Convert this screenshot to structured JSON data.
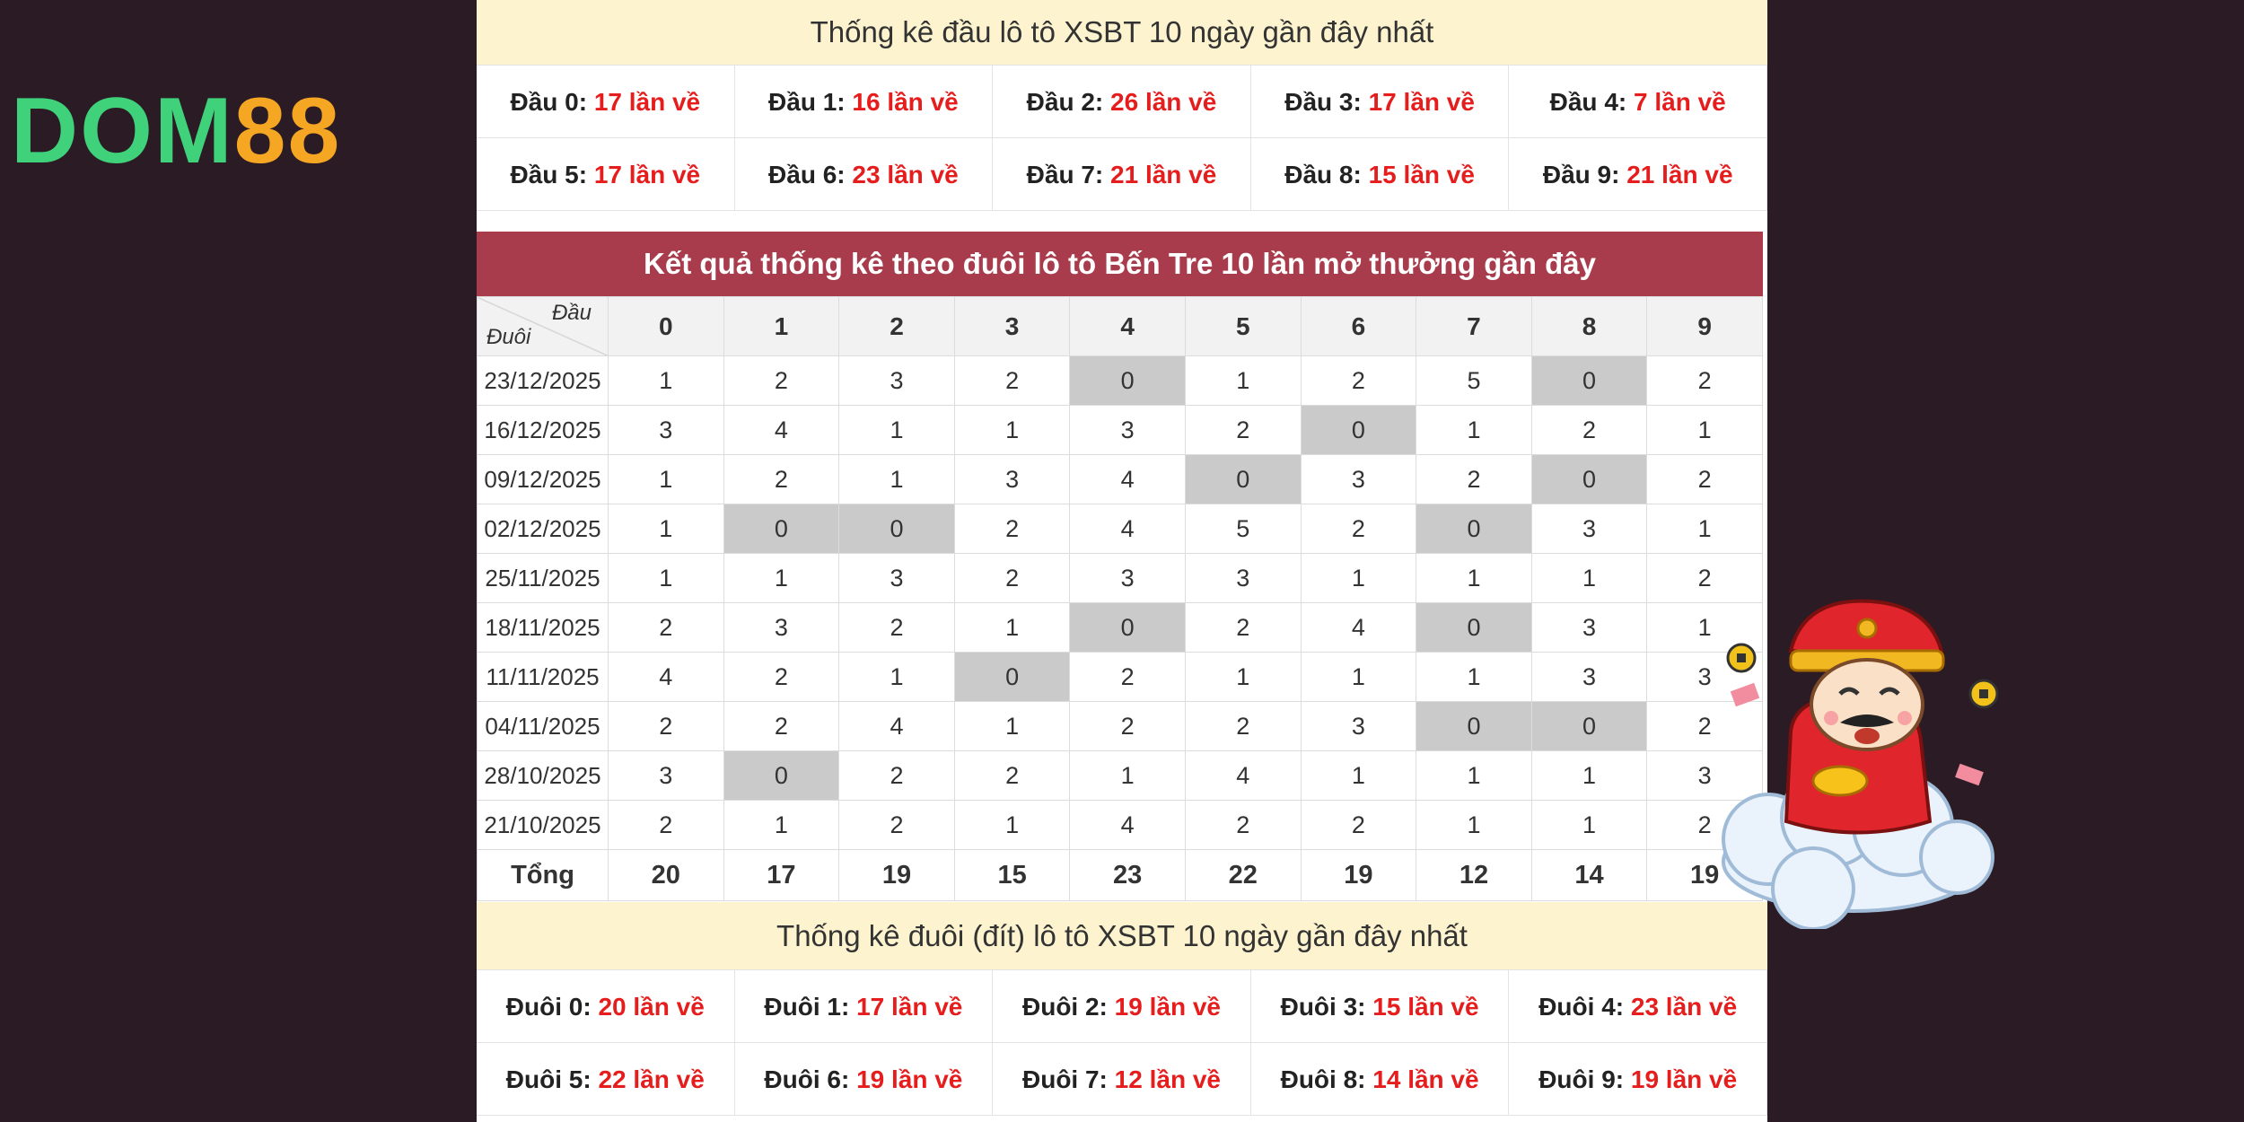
{
  "logo": {
    "part1": "DOM",
    "part2": "88"
  },
  "head_stats": {
    "title": "Thống kê đầu lô tô XSBT 10 ngày gần đây nhất",
    "items": [
      {
        "label": "Đầu 0:",
        "value": "17 lần về"
      },
      {
        "label": "Đầu 1:",
        "value": "16 lần về"
      },
      {
        "label": "Đầu 2:",
        "value": "26 lần về"
      },
      {
        "label": "Đầu 3:",
        "value": "17 lần về"
      },
      {
        "label": "Đầu 4:",
        "value": "7 lần về"
      },
      {
        "label": "Đầu 5:",
        "value": "17 lần về"
      },
      {
        "label": "Đầu 6:",
        "value": "23 lần về"
      },
      {
        "label": "Đầu 7:",
        "value": "21 lần về"
      },
      {
        "label": "Đầu 8:",
        "value": "15 lần về"
      },
      {
        "label": "Đầu 9:",
        "value": "21 lần về"
      }
    ]
  },
  "tail_table": {
    "title": "Kết quả thống kê theo đuôi lô tô Bến Tre 10 lần mở thưởng gần đây",
    "corner_top": "Đầu",
    "corner_bottom": "Đuôi",
    "columns": [
      "0",
      "1",
      "2",
      "3",
      "4",
      "5",
      "6",
      "7",
      "8",
      "9"
    ],
    "rows": [
      {
        "date": "23/12/2025",
        "values": [
          "1",
          "2",
          "3",
          "2",
          "0",
          "1",
          "2",
          "5",
          "0",
          "2"
        ]
      },
      {
        "date": "16/12/2025",
        "values": [
          "3",
          "4",
          "1",
          "1",
          "3",
          "2",
          "0",
          "1",
          "2",
          "1"
        ]
      },
      {
        "date": "09/12/2025",
        "values": [
          "1",
          "2",
          "1",
          "3",
          "4",
          "0",
          "3",
          "2",
          "0",
          "2"
        ]
      },
      {
        "date": "02/12/2025",
        "values": [
          "1",
          "0",
          "0",
          "2",
          "4",
          "5",
          "2",
          "0",
          "3",
          "1"
        ]
      },
      {
        "date": "25/11/2025",
        "values": [
          "1",
          "1",
          "3",
          "2",
          "3",
          "3",
          "1",
          "1",
          "1",
          "2"
        ]
      },
      {
        "date": "18/11/2025",
        "values": [
          "2",
          "3",
          "2",
          "1",
          "0",
          "2",
          "4",
          "0",
          "3",
          "1"
        ]
      },
      {
        "date": "11/11/2025",
        "values": [
          "4",
          "2",
          "1",
          "0",
          "2",
          "1",
          "1",
          "1",
          "3",
          "3"
        ]
      },
      {
        "date": "04/11/2025",
        "values": [
          "2",
          "2",
          "4",
          "1",
          "2",
          "2",
          "3",
          "0",
          "0",
          "2"
        ]
      },
      {
        "date": "28/10/2025",
        "values": [
          "3",
          "0",
          "2",
          "2",
          "1",
          "4",
          "1",
          "1",
          "1",
          "3"
        ]
      },
      {
        "date": "21/10/2025",
        "values": [
          "2",
          "1",
          "2",
          "1",
          "4",
          "2",
          "2",
          "1",
          "1",
          "2"
        ]
      }
    ],
    "total_label": "Tổng",
    "totals": [
      "20",
      "17",
      "19",
      "15",
      "23",
      "22",
      "19",
      "12",
      "14",
      "19"
    ]
  },
  "tail_stats": {
    "title": "Thống kê đuôi (đít) lô tô XSBT 10 ngày gần đây nhất",
    "items": [
      {
        "label": "Đuôi 0:",
        "value": "20 lần về"
      },
      {
        "label": "Đuôi 1:",
        "value": "17 lần về"
      },
      {
        "label": "Đuôi 2:",
        "value": "19 lần về"
      },
      {
        "label": "Đuôi 3:",
        "value": "15 lần về"
      },
      {
        "label": "Đuôi 4:",
        "value": "23 lần về"
      },
      {
        "label": "Đuôi 5:",
        "value": "22 lần về"
      },
      {
        "label": "Đuôi 6:",
        "value": "19 lần về"
      },
      {
        "label": "Đuôi 7:",
        "value": "12 lần về"
      },
      {
        "label": "Đuôi 8:",
        "value": "14 lần về"
      },
      {
        "label": "Đuôi 9:",
        "value": "19 lần về"
      }
    ]
  },
  "colors": {
    "value_red": "#e51d1d",
    "header_red": "#a93c4c",
    "zero_cell": "#cacaca",
    "yellow_header": "#fdf4cf"
  },
  "icons": [
    "god-of-wealth-mascot-icon"
  ]
}
